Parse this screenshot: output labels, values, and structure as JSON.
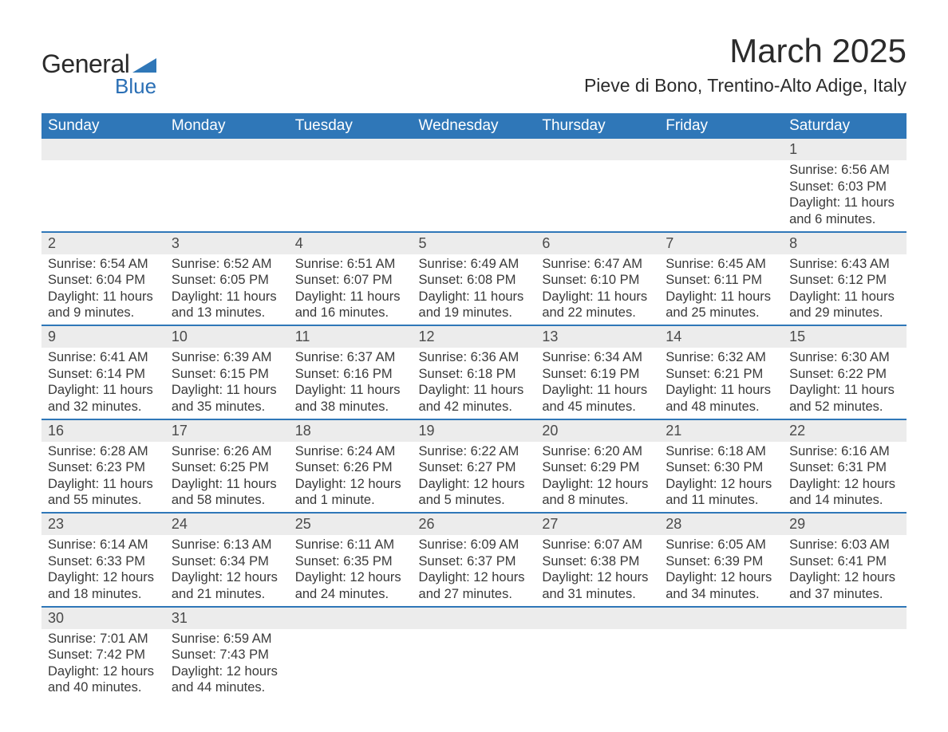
{
  "logo": {
    "text_general": "General",
    "text_blue": "Blue",
    "triangle_color": "#2f77b8"
  },
  "title": {
    "month": "March 2025",
    "location": "Pieve di Bono, Trentino-Alto Adige, Italy"
  },
  "colors": {
    "header_bg": "#2f77b8",
    "header_fg": "#ffffff",
    "daynum_bg": "#ececec",
    "row_border": "#2f77b8",
    "text": "#3a3a3a"
  },
  "weekdays": [
    "Sunday",
    "Monday",
    "Tuesday",
    "Wednesday",
    "Thursday",
    "Friday",
    "Saturday"
  ],
  "weeks": [
    [
      {
        "blank": true
      },
      {
        "blank": true
      },
      {
        "blank": true
      },
      {
        "blank": true
      },
      {
        "blank": true
      },
      {
        "blank": true
      },
      {
        "day": "1",
        "sunrise": "Sunrise: 6:56 AM",
        "sunset": "Sunset: 6:03 PM",
        "daylight1": "Daylight: 11 hours",
        "daylight2": "and 6 minutes."
      }
    ],
    [
      {
        "day": "2",
        "sunrise": "Sunrise: 6:54 AM",
        "sunset": "Sunset: 6:04 PM",
        "daylight1": "Daylight: 11 hours",
        "daylight2": "and 9 minutes."
      },
      {
        "day": "3",
        "sunrise": "Sunrise: 6:52 AM",
        "sunset": "Sunset: 6:05 PM",
        "daylight1": "Daylight: 11 hours",
        "daylight2": "and 13 minutes."
      },
      {
        "day": "4",
        "sunrise": "Sunrise: 6:51 AM",
        "sunset": "Sunset: 6:07 PM",
        "daylight1": "Daylight: 11 hours",
        "daylight2": "and 16 minutes."
      },
      {
        "day": "5",
        "sunrise": "Sunrise: 6:49 AM",
        "sunset": "Sunset: 6:08 PM",
        "daylight1": "Daylight: 11 hours",
        "daylight2": "and 19 minutes."
      },
      {
        "day": "6",
        "sunrise": "Sunrise: 6:47 AM",
        "sunset": "Sunset: 6:10 PM",
        "daylight1": "Daylight: 11 hours",
        "daylight2": "and 22 minutes."
      },
      {
        "day": "7",
        "sunrise": "Sunrise: 6:45 AM",
        "sunset": "Sunset: 6:11 PM",
        "daylight1": "Daylight: 11 hours",
        "daylight2": "and 25 minutes."
      },
      {
        "day": "8",
        "sunrise": "Sunrise: 6:43 AM",
        "sunset": "Sunset: 6:12 PM",
        "daylight1": "Daylight: 11 hours",
        "daylight2": "and 29 minutes."
      }
    ],
    [
      {
        "day": "9",
        "sunrise": "Sunrise: 6:41 AM",
        "sunset": "Sunset: 6:14 PM",
        "daylight1": "Daylight: 11 hours",
        "daylight2": "and 32 minutes."
      },
      {
        "day": "10",
        "sunrise": "Sunrise: 6:39 AM",
        "sunset": "Sunset: 6:15 PM",
        "daylight1": "Daylight: 11 hours",
        "daylight2": "and 35 minutes."
      },
      {
        "day": "11",
        "sunrise": "Sunrise: 6:37 AM",
        "sunset": "Sunset: 6:16 PM",
        "daylight1": "Daylight: 11 hours",
        "daylight2": "and 38 minutes."
      },
      {
        "day": "12",
        "sunrise": "Sunrise: 6:36 AM",
        "sunset": "Sunset: 6:18 PM",
        "daylight1": "Daylight: 11 hours",
        "daylight2": "and 42 minutes."
      },
      {
        "day": "13",
        "sunrise": "Sunrise: 6:34 AM",
        "sunset": "Sunset: 6:19 PM",
        "daylight1": "Daylight: 11 hours",
        "daylight2": "and 45 minutes."
      },
      {
        "day": "14",
        "sunrise": "Sunrise: 6:32 AM",
        "sunset": "Sunset: 6:21 PM",
        "daylight1": "Daylight: 11 hours",
        "daylight2": "and 48 minutes."
      },
      {
        "day": "15",
        "sunrise": "Sunrise: 6:30 AM",
        "sunset": "Sunset: 6:22 PM",
        "daylight1": "Daylight: 11 hours",
        "daylight2": "and 52 minutes."
      }
    ],
    [
      {
        "day": "16",
        "sunrise": "Sunrise: 6:28 AM",
        "sunset": "Sunset: 6:23 PM",
        "daylight1": "Daylight: 11 hours",
        "daylight2": "and 55 minutes."
      },
      {
        "day": "17",
        "sunrise": "Sunrise: 6:26 AM",
        "sunset": "Sunset: 6:25 PM",
        "daylight1": "Daylight: 11 hours",
        "daylight2": "and 58 minutes."
      },
      {
        "day": "18",
        "sunrise": "Sunrise: 6:24 AM",
        "sunset": "Sunset: 6:26 PM",
        "daylight1": "Daylight: 12 hours",
        "daylight2": "and 1 minute."
      },
      {
        "day": "19",
        "sunrise": "Sunrise: 6:22 AM",
        "sunset": "Sunset: 6:27 PM",
        "daylight1": "Daylight: 12 hours",
        "daylight2": "and 5 minutes."
      },
      {
        "day": "20",
        "sunrise": "Sunrise: 6:20 AM",
        "sunset": "Sunset: 6:29 PM",
        "daylight1": "Daylight: 12 hours",
        "daylight2": "and 8 minutes."
      },
      {
        "day": "21",
        "sunrise": "Sunrise: 6:18 AM",
        "sunset": "Sunset: 6:30 PM",
        "daylight1": "Daylight: 12 hours",
        "daylight2": "and 11 minutes."
      },
      {
        "day": "22",
        "sunrise": "Sunrise: 6:16 AM",
        "sunset": "Sunset: 6:31 PM",
        "daylight1": "Daylight: 12 hours",
        "daylight2": "and 14 minutes."
      }
    ],
    [
      {
        "day": "23",
        "sunrise": "Sunrise: 6:14 AM",
        "sunset": "Sunset: 6:33 PM",
        "daylight1": "Daylight: 12 hours",
        "daylight2": "and 18 minutes."
      },
      {
        "day": "24",
        "sunrise": "Sunrise: 6:13 AM",
        "sunset": "Sunset: 6:34 PM",
        "daylight1": "Daylight: 12 hours",
        "daylight2": "and 21 minutes."
      },
      {
        "day": "25",
        "sunrise": "Sunrise: 6:11 AM",
        "sunset": "Sunset: 6:35 PM",
        "daylight1": "Daylight: 12 hours",
        "daylight2": "and 24 minutes."
      },
      {
        "day": "26",
        "sunrise": "Sunrise: 6:09 AM",
        "sunset": "Sunset: 6:37 PM",
        "daylight1": "Daylight: 12 hours",
        "daylight2": "and 27 minutes."
      },
      {
        "day": "27",
        "sunrise": "Sunrise: 6:07 AM",
        "sunset": "Sunset: 6:38 PM",
        "daylight1": "Daylight: 12 hours",
        "daylight2": "and 31 minutes."
      },
      {
        "day": "28",
        "sunrise": "Sunrise: 6:05 AM",
        "sunset": "Sunset: 6:39 PM",
        "daylight1": "Daylight: 12 hours",
        "daylight2": "and 34 minutes."
      },
      {
        "day": "29",
        "sunrise": "Sunrise: 6:03 AM",
        "sunset": "Sunset: 6:41 PM",
        "daylight1": "Daylight: 12 hours",
        "daylight2": "and 37 minutes."
      }
    ],
    [
      {
        "day": "30",
        "sunrise": "Sunrise: 7:01 AM",
        "sunset": "Sunset: 7:42 PM",
        "daylight1": "Daylight: 12 hours",
        "daylight2": "and 40 minutes."
      },
      {
        "day": "31",
        "sunrise": "Sunrise: 6:59 AM",
        "sunset": "Sunset: 7:43 PM",
        "daylight1": "Daylight: 12 hours",
        "daylight2": "and 44 minutes."
      },
      {
        "blank": true
      },
      {
        "blank": true
      },
      {
        "blank": true
      },
      {
        "blank": true
      },
      {
        "blank": true
      }
    ]
  ]
}
